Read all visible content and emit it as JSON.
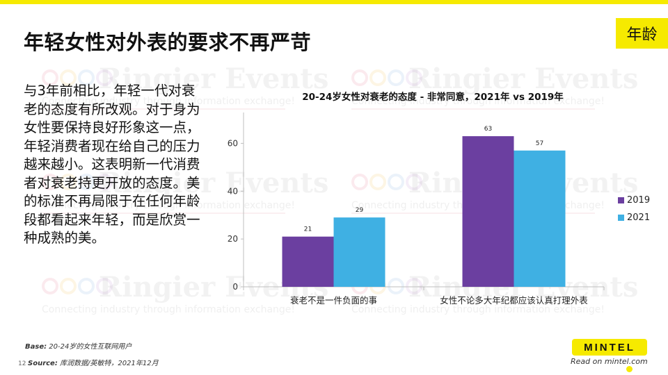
{
  "slide": {
    "title": "年轻女性对外表的要求不再严苛",
    "tag": "年龄",
    "body": "与3年前相比，年轻一代对衰老的态度有所改观。对于身为女性要保持良好形象这一点，年轻消费者现在给自己的压力越来越小。这表明新一代消费者对衰老持更开放的态度。美的标准不再局限于在任何年龄段都看起来年轻，而是欣赏一种成熟的美。",
    "base_label": "Base:",
    "base_text": "20-24岁的女性互联网用户",
    "source_label": "Source:",
    "source_text": "库润数据/英敏特，2021年12月",
    "page_number": "12",
    "logo": "MINTEL",
    "read_on": "Read on mintel.com"
  },
  "watermark": {
    "logo_text": "Ringier Events",
    "tagline": "Connecting industry through information exchange!",
    "circle_colors": [
      "#e98a9f",
      "#f5c96b",
      "#8fb8e3",
      "#c9a3d6"
    ]
  },
  "chart_data": {
    "type": "bar",
    "title": "20-24岁女性对衰老的态度 - 非常同意，2021年 vs 2019年",
    "categories": [
      "衰老不是一件负面的事",
      "女性不论多大年纪都应该认真打理外表"
    ],
    "series": [
      {
        "name": "2019",
        "values": [
          21,
          63
        ],
        "color": "#6b3fa0"
      },
      {
        "name": "2021",
        "values": [
          29,
          57
        ],
        "color": "#3fb0e3"
      }
    ],
    "yticks": [
      0,
      20,
      40,
      60
    ],
    "ylim": [
      0,
      70
    ],
    "grid": false,
    "legend_position": "right"
  }
}
